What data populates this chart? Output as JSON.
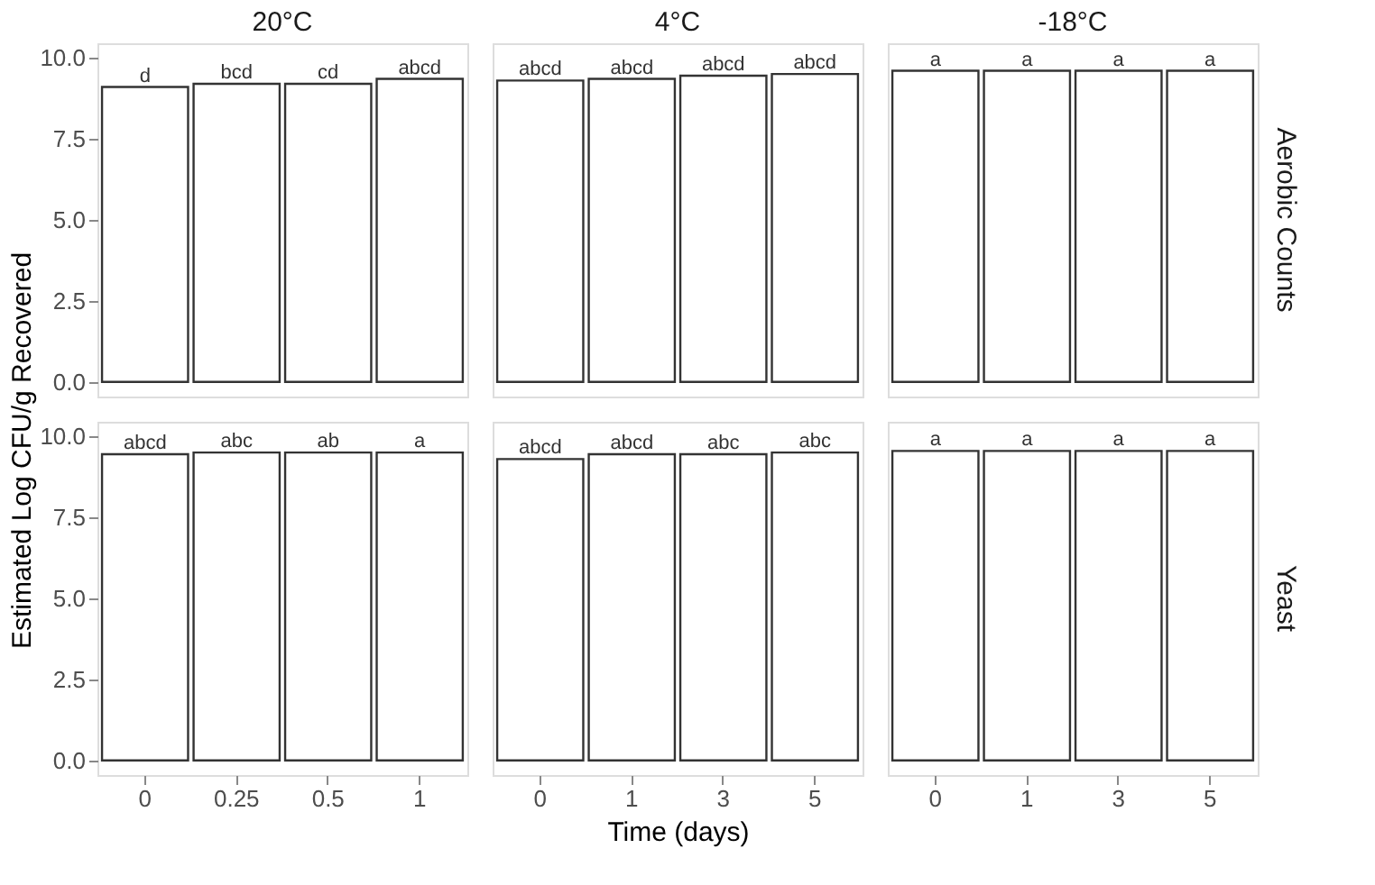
{
  "chart_data": [
    {
      "type": "bar",
      "title": "20°C",
      "ylabel": "Estimated Log CFU/g Recovered",
      "categories": [
        "0",
        "0.25",
        "0.5",
        "1"
      ],
      "values": [
        9.1,
        9.2,
        9.2,
        9.35
      ],
      "value_labels": [
        "d",
        "bcd",
        "cd",
        "abcd"
      ],
      "color": "#ffffff",
      "ylim": [
        -0.45,
        10.45
      ],
      "yticks": [
        {
          "value": 0,
          "label": "0.0"
        },
        {
          "value": 2.5,
          "label": "2.5"
        },
        {
          "value": 5,
          "label": "5.0"
        },
        {
          "value": 7.5,
          "label": "7.5"
        },
        {
          "value": 10,
          "label": "10.0"
        }
      ],
      "grid": false,
      "tick_labels": "y"
    },
    {
      "type": "bar",
      "title": "4°C",
      "categories": [
        "0",
        "1",
        "3",
        "5"
      ],
      "values": [
        9.3,
        9.35,
        9.45,
        9.5
      ],
      "value_labels": [
        "abcd",
        "abcd",
        "abcd",
        "abcd"
      ],
      "color": "#ffffff",
      "ylim": [
        -0.45,
        10.45
      ],
      "grid": false,
      "tick_labels": false
    },
    {
      "type": "bar",
      "title": "-18°C",
      "y2label": "Aerobic Counts",
      "categories": [
        "0",
        "1",
        "3",
        "5"
      ],
      "values": [
        9.6,
        9.6,
        9.6,
        9.6
      ],
      "value_labels": [
        "a",
        "a",
        "a",
        "a"
      ],
      "color": "#ffffff",
      "ylim": [
        -0.45,
        10.45
      ],
      "grid": false,
      "tick_labels": false
    },
    {
      "type": "bar",
      "categories": [
        "0",
        "0.25",
        "0.5",
        "1"
      ],
      "values": [
        9.45,
        9.5,
        9.5,
        9.5
      ],
      "value_labels": [
        "abcd",
        "abc",
        "ab",
        "a"
      ],
      "color": "#ffffff",
      "ylim": [
        -0.45,
        10.45
      ],
      "yticks": [
        {
          "value": 0,
          "label": "0.0"
        },
        {
          "value": 2.5,
          "label": "2.5"
        },
        {
          "value": 5,
          "label": "5.0"
        },
        {
          "value": 7.5,
          "label": "7.5"
        },
        {
          "value": 10,
          "label": "10.0"
        }
      ],
      "grid": false
    },
    {
      "type": "bar",
      "xlabel": "Time (days)",
      "categories": [
        "0",
        "1",
        "3",
        "5"
      ],
      "values": [
        9.3,
        9.45,
        9.45,
        9.5
      ],
      "value_labels": [
        "abcd",
        "abcd",
        "abc",
        "abc"
      ],
      "color": "#ffffff",
      "ylim": [
        -0.45,
        10.45
      ],
      "grid": false,
      "tick_labels": "x"
    },
    {
      "type": "bar",
      "y2label": "Yeast",
      "categories": [
        "0",
        "1",
        "3",
        "5"
      ],
      "values": [
        9.55,
        9.55,
        9.55,
        9.55
      ],
      "value_labels": [
        "a",
        "a",
        "a",
        "a"
      ],
      "color": "#ffffff",
      "ylim": [
        -0.45,
        10.45
      ],
      "grid": false,
      "tick_labels": "x"
    }
  ]
}
